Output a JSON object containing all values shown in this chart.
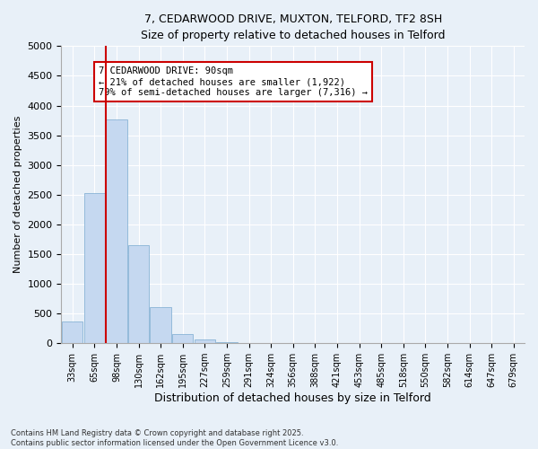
{
  "title_line1": "7, CEDARWOOD DRIVE, MUXTON, TELFORD, TF2 8SH",
  "title_line2": "Size of property relative to detached houses in Telford",
  "xlabel": "Distribution of detached houses by size in Telford",
  "ylabel": "Number of detached properties",
  "categories": [
    "33sqm",
    "65sqm",
    "98sqm",
    "130sqm",
    "162sqm",
    "195sqm",
    "227sqm",
    "259sqm",
    "291sqm",
    "324sqm",
    "356sqm",
    "388sqm",
    "421sqm",
    "453sqm",
    "485sqm",
    "518sqm",
    "550sqm",
    "582sqm",
    "614sqm",
    "647sqm",
    "679sqm"
  ],
  "values": [
    370,
    2530,
    3770,
    1650,
    610,
    155,
    60,
    15,
    5,
    2,
    1,
    0,
    0,
    0,
    0,
    0,
    0,
    0,
    0,
    0,
    0
  ],
  "bar_color": "#c5d8f0",
  "bar_edge_color": "#7aaad0",
  "annotation_text": "7 CEDARWOOD DRIVE: 90sqm\n← 21% of detached houses are smaller (1,922)\n79% of semi-detached houses are larger (7,316) →",
  "annotation_box_color": "#ffffff",
  "annotation_box_edge_color": "#cc0000",
  "red_line_color": "#cc0000",
  "ylim": [
    0,
    5000
  ],
  "yticks": [
    0,
    500,
    1000,
    1500,
    2000,
    2500,
    3000,
    3500,
    4000,
    4500,
    5000
  ],
  "background_color": "#e8f0f8",
  "plot_background": "#e8f0f8",
  "grid_color": "#ffffff",
  "footer_line1": "Contains HM Land Registry data © Crown copyright and database right 2025.",
  "footer_line2": "Contains public sector information licensed under the Open Government Licence v3.0."
}
